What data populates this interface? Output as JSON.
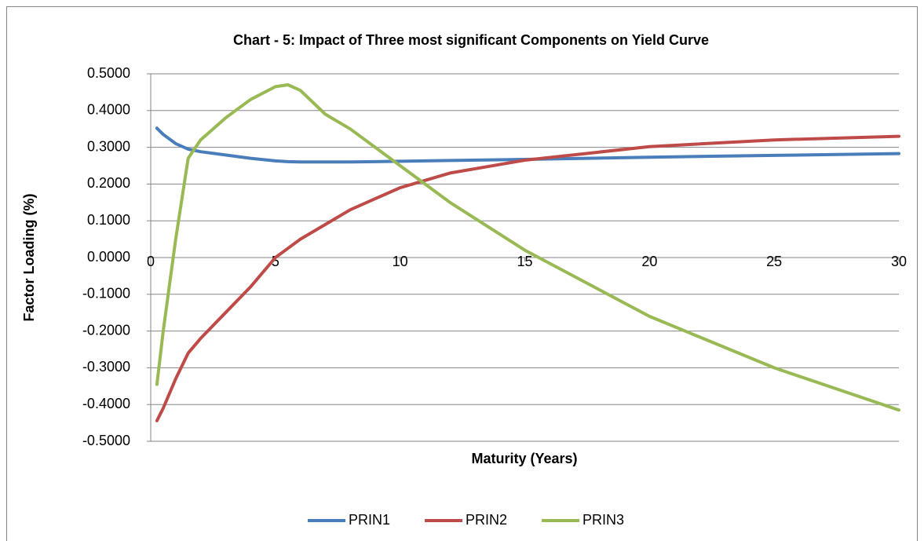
{
  "chart_data": {
    "type": "line",
    "title": "Chart - 5: Impact of Three most significant Components  on Yield Curve",
    "xlabel": "Maturity (Years)",
    "ylabel": "Factor Loading (%)",
    "x": [
      0.25,
      0.5,
      1,
      1.5,
      2,
      3,
      4,
      5,
      5.5,
      6,
      7,
      8,
      9,
      10,
      12,
      15,
      20,
      25,
      30
    ],
    "series": [
      {
        "name": "PRIN1",
        "color": "#4a7ebb",
        "values": [
          0.352,
          0.335,
          0.31,
          0.295,
          0.288,
          0.279,
          0.27,
          0.263,
          0.261,
          0.26,
          0.26,
          0.26,
          0.261,
          0.262,
          0.264,
          0.267,
          0.273,
          0.278,
          0.283
        ]
      },
      {
        "name": "PRIN2",
        "color": "#be4b48",
        "values": [
          -0.444,
          -0.41,
          -0.33,
          -0.26,
          -0.22,
          -0.15,
          -0.08,
          0.0,
          0.025,
          0.05,
          0.09,
          0.13,
          0.16,
          0.19,
          0.23,
          0.265,
          0.302,
          0.32,
          0.33
        ]
      },
      {
        "name": "PRIN3",
        "color": "#98b954",
        "values": [
          -0.345,
          -0.2,
          0.05,
          0.27,
          0.32,
          0.38,
          0.43,
          0.465,
          0.47,
          0.455,
          0.39,
          0.35,
          0.3,
          0.25,
          0.15,
          0.02,
          -0.16,
          -0.3,
          -0.415
        ]
      }
    ],
    "xlim": [
      0,
      30
    ],
    "xticks": [
      0,
      5,
      10,
      15,
      20,
      25,
      30
    ],
    "ylim": [
      -0.5,
      0.5
    ],
    "yticks": [
      {
        "value": -0.5,
        "label": "-0.5000"
      },
      {
        "value": -0.4,
        "label": "-0.4000"
      },
      {
        "value": -0.3,
        "label": "-0.3000"
      },
      {
        "value": -0.2,
        "label": "-0.2000"
      },
      {
        "value": -0.1,
        "label": "-0.1000"
      },
      {
        "value": 0,
        "label": "0.0000"
      },
      {
        "value": 0.1,
        "label": "0.1000"
      },
      {
        "value": 0.2,
        "label": "0.2000"
      },
      {
        "value": 0.3,
        "label": "0.3000"
      },
      {
        "value": 0.4,
        "label": "0.4000"
      },
      {
        "value": 0.5,
        "label": "0.5000"
      }
    ],
    "grid": true,
    "legend": "bottom"
  }
}
